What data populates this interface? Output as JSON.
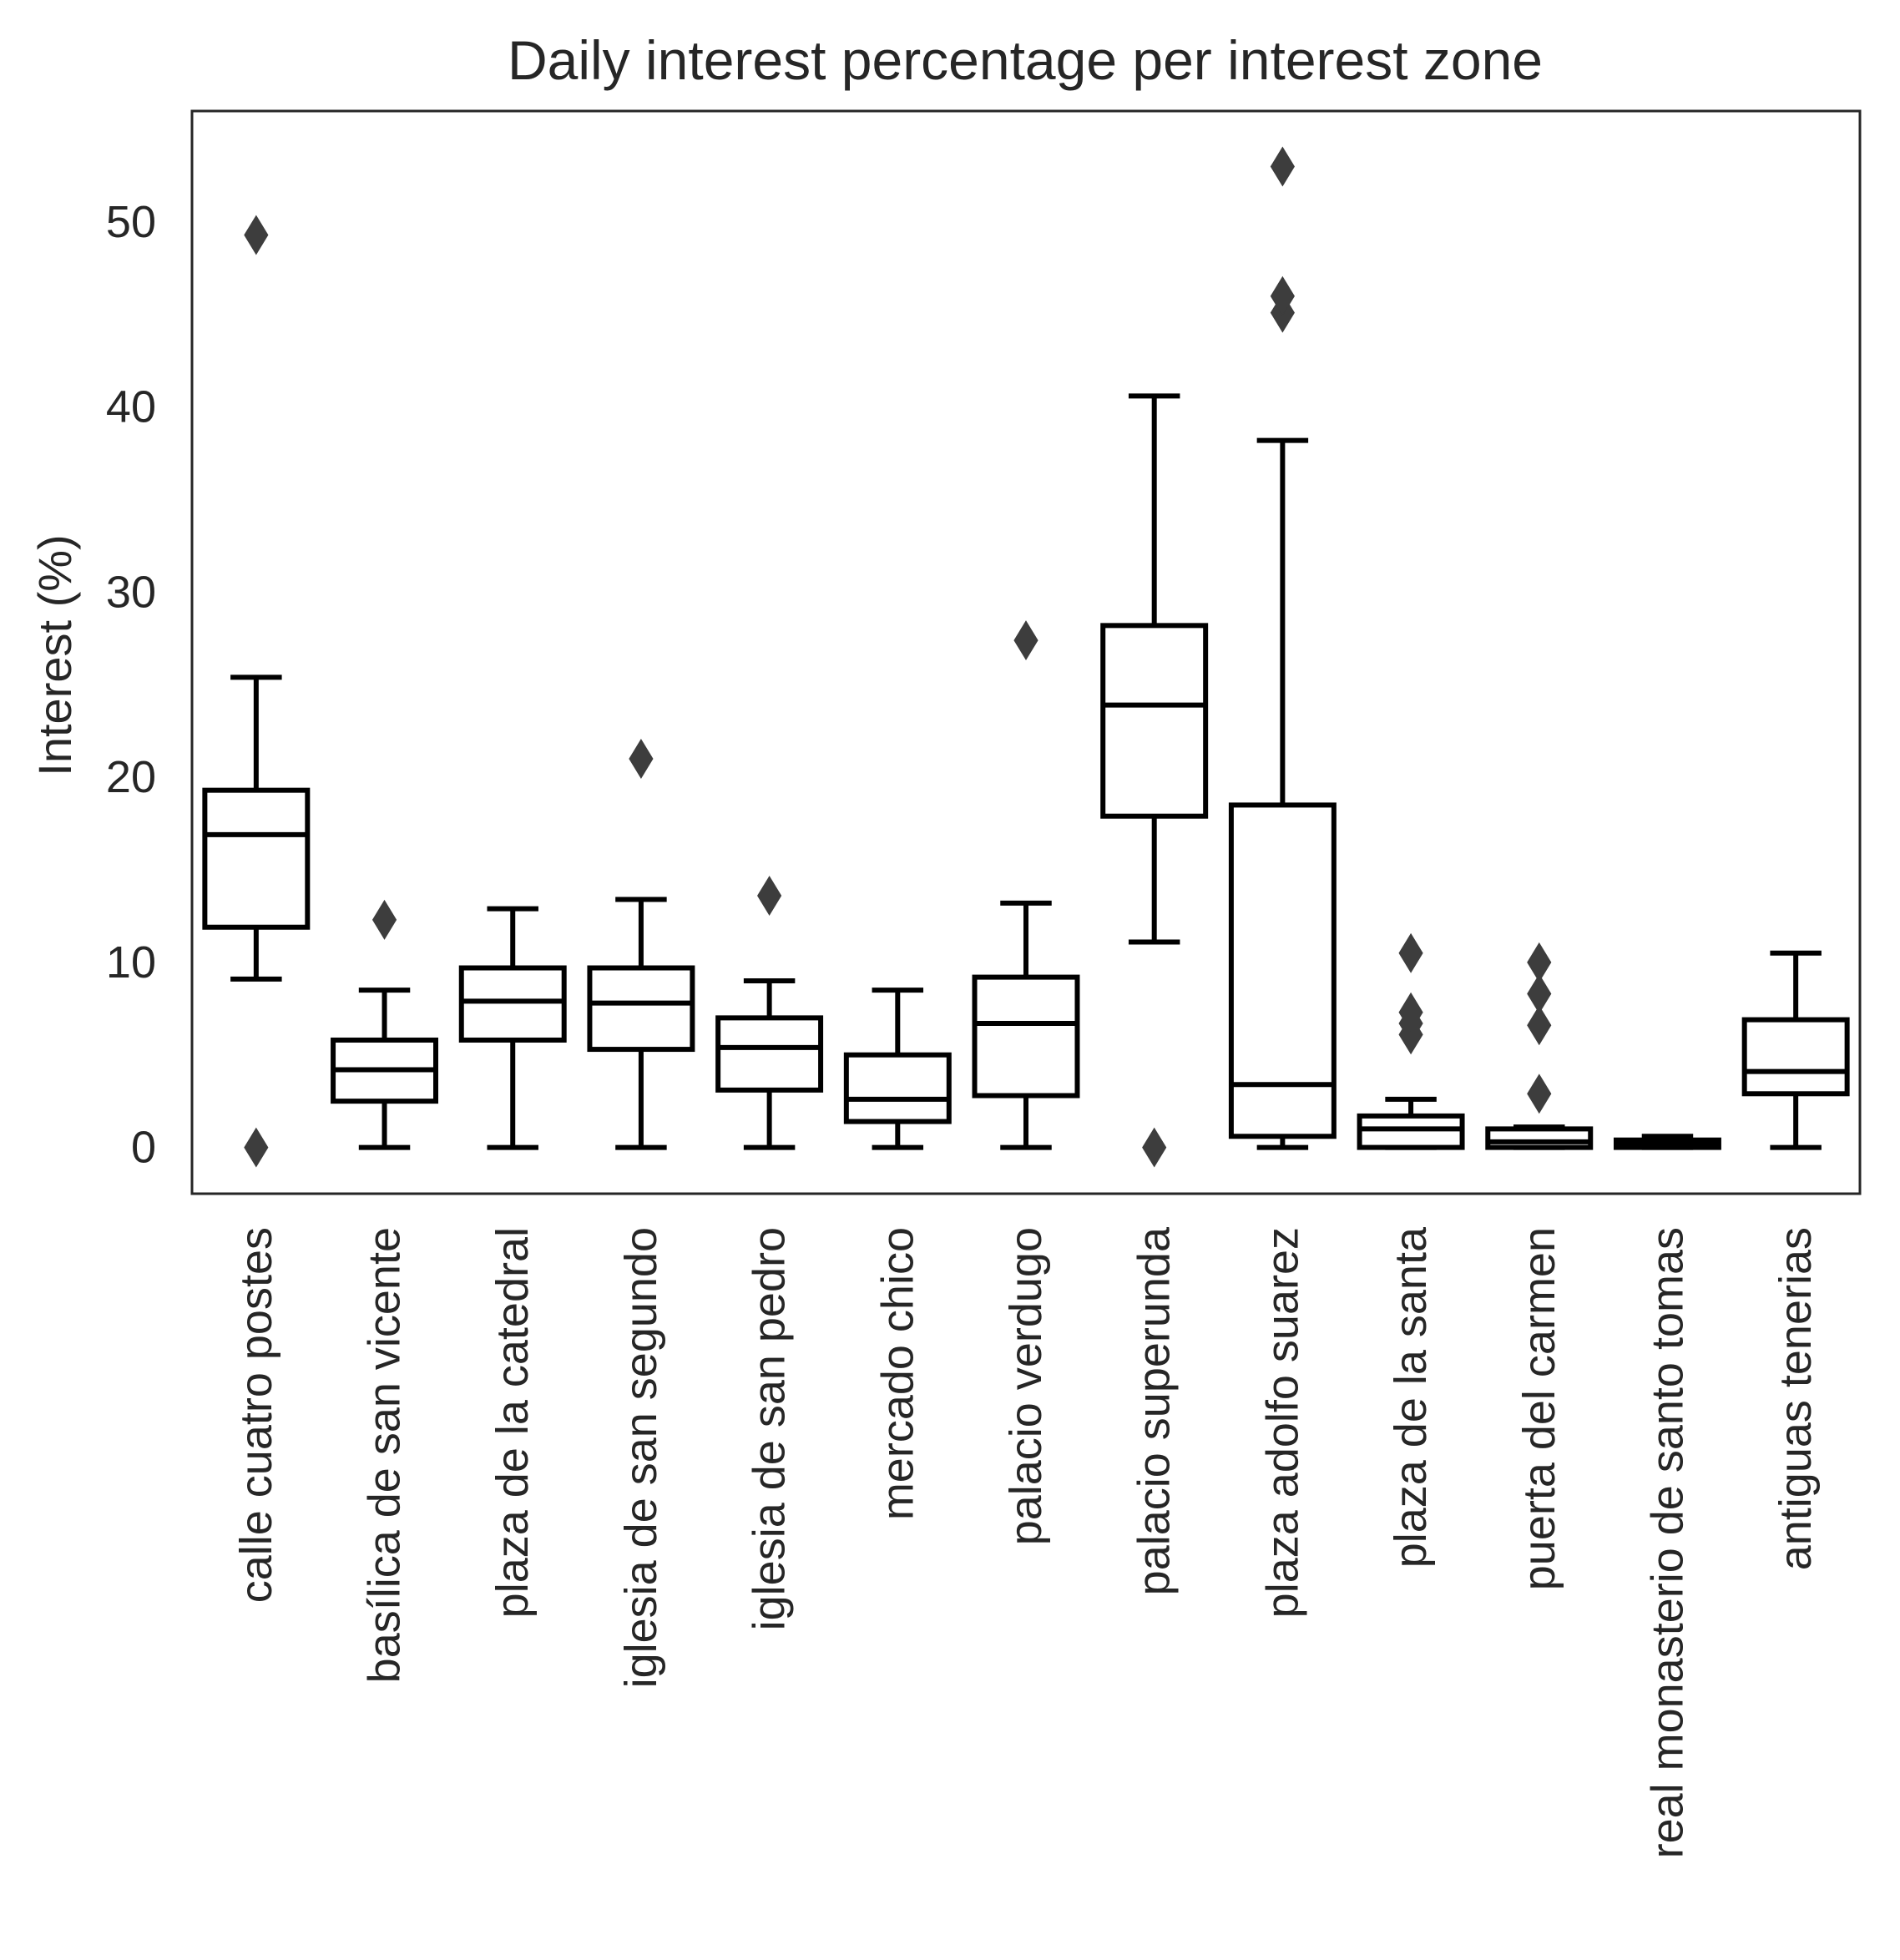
{
  "chart_data": {
    "type": "boxplot",
    "title": "Daily interest percentage per interest zone",
    "xlabel": "",
    "ylabel": "Interest (%)",
    "ylim": [
      -2.5,
      56
    ],
    "yticks": [
      0,
      10,
      20,
      30,
      40,
      50
    ],
    "grid": false,
    "categories": [
      "calle cuatro postes",
      "basílica de san vicente",
      "plaza de la catedral",
      "iglesia de san segundo",
      "iglesia de san pedro",
      "mercado chico",
      "palacio verdugo",
      "palacio superunda",
      "plaza adolfo suarez",
      "plaza de la santa",
      "puerta del carmen",
      "real monasterio de santo tomas",
      "antiguas tenerias"
    ],
    "boxes": [
      {
        "whisker_low": 9.1,
        "q1": 11.9,
        "median": 16.9,
        "q3": 19.3,
        "whisker_high": 25.4,
        "outliers": [
          0.0,
          49.3
        ]
      },
      {
        "whisker_low": 0.0,
        "q1": 2.5,
        "median": 4.2,
        "q3": 5.8,
        "whisker_high": 8.5,
        "outliers": [
          12.3
        ]
      },
      {
        "whisker_low": 0.0,
        "q1": 5.8,
        "median": 7.9,
        "q3": 9.7,
        "whisker_high": 12.9,
        "outliers": []
      },
      {
        "whisker_low": 0.0,
        "q1": 5.3,
        "median": 7.8,
        "q3": 9.7,
        "whisker_high": 13.4,
        "outliers": [
          21.0
        ]
      },
      {
        "whisker_low": 0.0,
        "q1": 3.1,
        "median": 5.4,
        "q3": 7.0,
        "whisker_high": 9.0,
        "outliers": [
          13.6
        ]
      },
      {
        "whisker_low": 0.0,
        "q1": 1.4,
        "median": 2.6,
        "q3": 5.0,
        "whisker_high": 8.5,
        "outliers": []
      },
      {
        "whisker_low": 0.0,
        "q1": 2.8,
        "median": 6.7,
        "q3": 9.2,
        "whisker_high": 13.2,
        "outliers": [
          27.4
        ]
      },
      {
        "whisker_low": 11.1,
        "q1": 17.9,
        "median": 23.9,
        "q3": 28.2,
        "whisker_high": 40.6,
        "outliers": [
          0.0
        ]
      },
      {
        "whisker_low": 0.0,
        "q1": 0.6,
        "median": 3.4,
        "q3": 18.5,
        "whisker_high": 38.2,
        "outliers": [
          45.1,
          46.0,
          53.0
        ]
      },
      {
        "whisker_low": 0.0,
        "q1": 0.0,
        "median": 1.0,
        "q3": 1.7,
        "whisker_high": 2.6,
        "outliers": [
          6.1,
          6.7,
          7.3,
          10.5
        ]
      },
      {
        "whisker_low": 0.0,
        "q1": 0.0,
        "median": 0.3,
        "q3": 1.0,
        "whisker_high": 1.1,
        "outliers": [
          2.9,
          6.6,
          8.3,
          10.0
        ]
      },
      {
        "whisker_low": 0.0,
        "q1": 0.0,
        "median": 0.2,
        "q3": 0.4,
        "whisker_high": 0.6,
        "outliers": []
      },
      {
        "whisker_low": 0.0,
        "q1": 2.9,
        "median": 4.1,
        "q3": 6.9,
        "whisker_high": 10.5,
        "outliers": []
      }
    ],
    "colors": {
      "box_stroke": "#000000",
      "box_fill": "#ffffff",
      "outlier_fill": "#3d3d3d",
      "axes_frame": "#262626",
      "text": "#262626"
    }
  }
}
